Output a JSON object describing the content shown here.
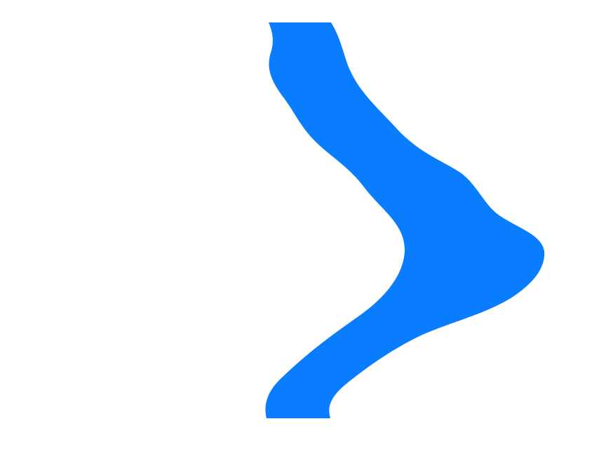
{
  "colors": {
    "background": "#ffffff",
    "shape_fill": "#0a7dff"
  },
  "shape": {
    "kind": "filled-blob",
    "icon": "chevron-right-shape"
  }
}
